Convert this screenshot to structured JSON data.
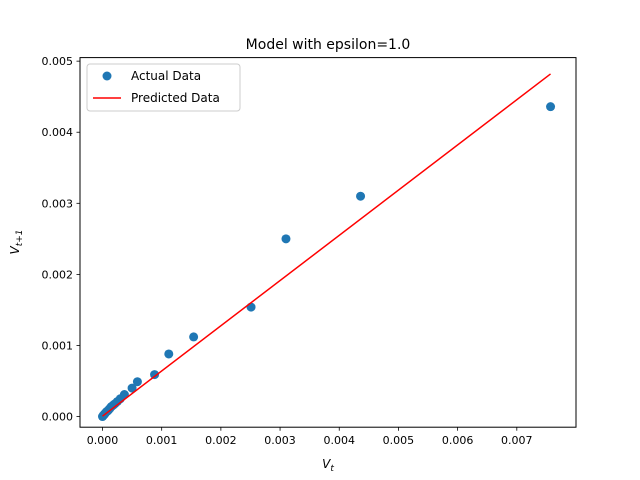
{
  "chart_data": {
    "type": "scatter",
    "title": "Model with epsilon=1.0",
    "xlabel": {
      "base": "V",
      "sub": "t"
    },
    "ylabel": {
      "base": "V",
      "sub": "t+1"
    },
    "xlim": [
      -0.00038,
      0.008
    ],
    "ylim": [
      -0.00015,
      0.00505
    ],
    "x_ticks": [
      0,
      0.001,
      0.002,
      0.003,
      0.004,
      0.005,
      0.006,
      0.007
    ],
    "x_tick_labels": [
      "0.000",
      "0.001",
      "0.002",
      "0.003",
      "0.004",
      "0.005",
      "0.006",
      "0.007"
    ],
    "y_ticks": [
      0,
      0.001,
      0.002,
      0.003,
      0.004,
      0.005
    ],
    "y_tick_labels": [
      "0.000",
      "0.001",
      "0.002",
      "0.003",
      "0.004",
      "0.005"
    ],
    "legend_position": "top-left",
    "series": [
      {
        "name": "Actual Data",
        "kind": "scatter",
        "color": "#1f77b4",
        "points": [
          [
            0.0,
            0.0
          ],
          [
            1e-05,
            1e-05
          ],
          [
            2e-05,
            2e-05
          ],
          [
            3e-05,
            3e-05
          ],
          [
            4e-05,
            4e-05
          ],
          [
            5e-05,
            5e-05
          ],
          [
            7e-05,
            7e-05
          ],
          [
            9e-05,
            8e-05
          ],
          [
            0.00011,
            0.0001
          ],
          [
            0.00013,
            0.00012
          ],
          [
            0.00015,
            0.00014
          ],
          [
            0.00018,
            0.00016
          ],
          [
            0.00021,
            0.00018
          ],
          [
            0.00025,
            0.00021
          ],
          [
            0.0003,
            0.00025
          ],
          [
            0.00037,
            0.00031
          ],
          [
            0.0005,
            0.0004
          ],
          [
            0.00059,
            0.00049
          ],
          [
            0.00088,
            0.00059
          ],
          [
            0.00112,
            0.00088
          ],
          [
            0.00154,
            0.00112
          ],
          [
            0.00251,
            0.00154
          ],
          [
            0.0031,
            0.0025
          ],
          [
            0.00436,
            0.0031
          ],
          [
            0.00757,
            0.00436
          ]
        ]
      },
      {
        "name": "Predicted Data",
        "kind": "line",
        "color": "#ff0000",
        "points": [
          [
            0.0,
            5e-06
          ],
          [
            0.00757,
            0.00482
          ]
        ]
      }
    ]
  }
}
